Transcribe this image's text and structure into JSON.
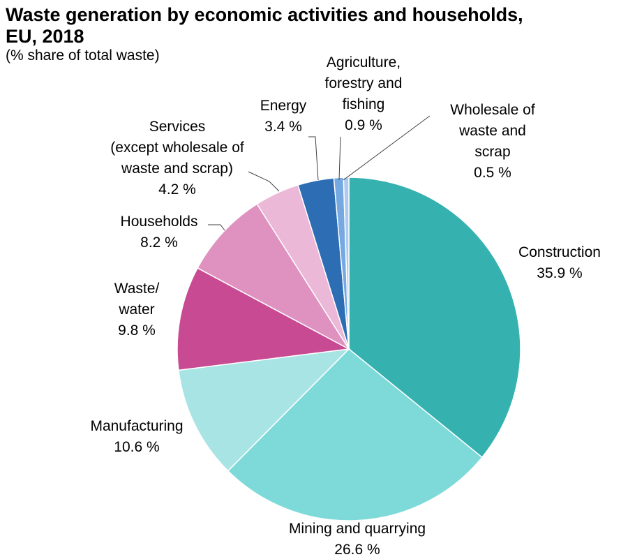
{
  "chart_data": {
    "type": "pie",
    "title": "Waste generation by economic activities and households, EU, 2018",
    "subtitle": "(% share of total waste)",
    "unit": "%",
    "slices": [
      {
        "name": "Construction",
        "value": 35.9,
        "label_lines": [
          "Construction"
        ],
        "value_label": "35.9 %",
        "color": "#35b1b0"
      },
      {
        "name": "Mining and quarrying",
        "value": 26.6,
        "label_lines": [
          "Mining and quarrying"
        ],
        "value_label": "26.6 %",
        "color": "#7ddad9"
      },
      {
        "name": "Manufacturing",
        "value": 10.6,
        "label_lines": [
          "Manufacturing"
        ],
        "value_label": "10.6 %",
        "color": "#a9e4e5"
      },
      {
        "name": "Waste/ water",
        "value": 9.8,
        "label_lines": [
          "Waste/",
          "water"
        ],
        "value_label": "9.8 %",
        "color": "#c84a93"
      },
      {
        "name": "Households",
        "value": 8.2,
        "label_lines": [
          "Households"
        ],
        "value_label": "8.2 %",
        "color": "#df92c0"
      },
      {
        "name": "Services (except wholesale of waste and scrap)",
        "value": 4.2,
        "label_lines": [
          "Services",
          "(except wholesale of",
          "waste and scrap)"
        ],
        "value_label": "4.2 %",
        "color": "#ebb8d7"
      },
      {
        "name": "Energy",
        "value": 3.4,
        "label_lines": [
          "Energy"
        ],
        "value_label": "3.4 %",
        "color": "#2d6db4"
      },
      {
        "name": "Agriculture, forestry and fishing",
        "value": 0.9,
        "label_lines": [
          "Agriculture,",
          "forestry and",
          "fishing"
        ],
        "value_label": "0.9 %",
        "color": "#76a9e2"
      },
      {
        "name": "Wholesale of waste and scrap",
        "value": 0.5,
        "label_lines": [
          "Wholesale of",
          "waste and",
          "scrap"
        ],
        "value_label": "0.5 %",
        "color": "#aecbef"
      }
    ]
  }
}
